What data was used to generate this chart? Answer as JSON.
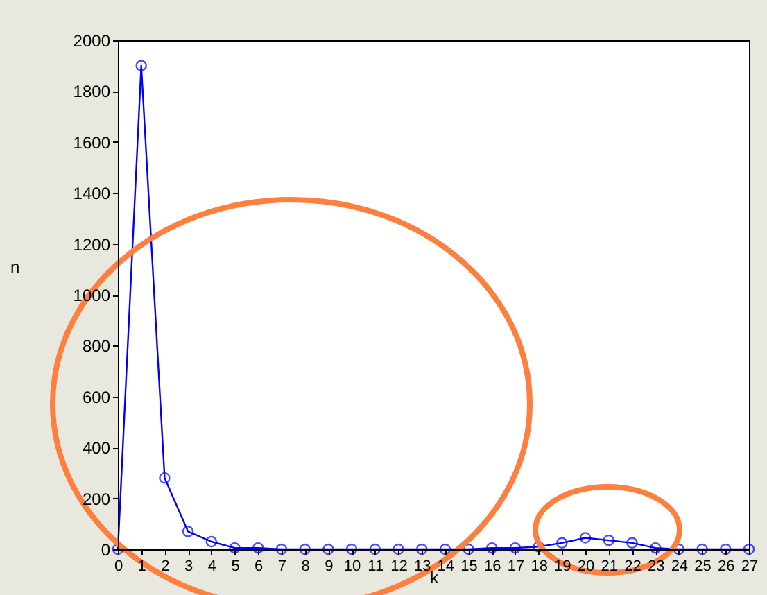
{
  "chart_data": {
    "type": "line",
    "xlabel": "k",
    "ylabel": "n",
    "x": [
      0,
      1,
      2,
      3,
      4,
      5,
      6,
      7,
      8,
      9,
      10,
      11,
      12,
      13,
      14,
      15,
      16,
      17,
      18,
      19,
      20,
      21,
      22,
      23,
      24,
      25,
      26,
      27
    ],
    "series": [
      {
        "color": "#0000ff",
        "values": [
          0,
          1900,
          280,
          70,
          30,
          5,
          5,
          0,
          0,
          0,
          0,
          0,
          0,
          0,
          0,
          0,
          5,
          5,
          10,
          25,
          45,
          35,
          25,
          5,
          0,
          0,
          0,
          0
        ]
      }
    ],
    "xlim": [
      0,
      27
    ],
    "xticks": [
      0,
      1,
      2,
      3,
      4,
      5,
      6,
      7,
      8,
      9,
      10,
      11,
      12,
      13,
      14,
      15,
      16,
      17,
      18,
      19,
      20,
      21,
      22,
      23,
      24,
      25,
      26,
      27
    ],
    "ylim": [
      0,
      2000
    ],
    "yticks": [
      0,
      200,
      400,
      600,
      800,
      1000,
      1200,
      1400,
      1600,
      1800,
      2000
    ],
    "marker": "circle",
    "line_style": "solid",
    "grid": false,
    "legend": false
  }
}
